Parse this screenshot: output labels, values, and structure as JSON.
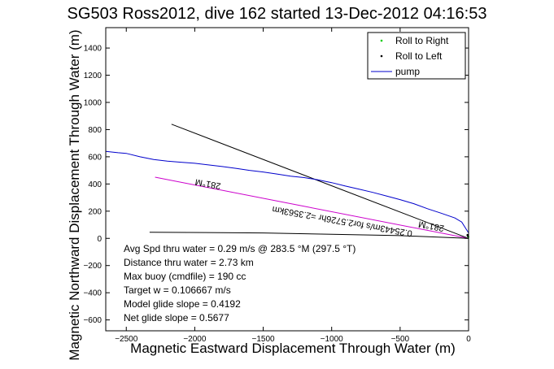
{
  "chart_data": {
    "type": "line",
    "title": "SG503 Ross2012, dive 162 started 13-Dec-2012 04:16:53",
    "xlabel": "Magnetic Eastward Displacement Through Water (m)",
    "ylabel": "Magnetic Northward Displacement Through Water (m)",
    "xlim": [
      -2650,
      0
    ],
    "ylim": [
      -680,
      1550
    ],
    "xticks": [
      -2500,
      -2000,
      -1500,
      -1000,
      -500,
      0
    ],
    "yticks": [
      -600,
      -400,
      -200,
      0,
      200,
      400,
      600,
      800,
      1000,
      1200,
      1400
    ],
    "xtick_labels": [
      "−2500",
      "−2000",
      "−1500",
      "−1000",
      "−500",
      "0"
    ],
    "ytick_labels": [
      "−600",
      "−400",
      "−200",
      "0",
      "200",
      "400",
      "600",
      "800",
      "1000",
      "1200",
      "1400"
    ],
    "grid": false,
    "legend_position": "top-right",
    "series": [
      {
        "name": "Roll to Right",
        "color": "#00cc00",
        "style": "dots",
        "x": [
          -5,
          -3,
          -2
        ],
        "y": [
          20,
          15,
          10
        ]
      },
      {
        "name": "Roll to Left",
        "color": "#000000",
        "style": "dots",
        "x": [
          -8,
          -6
        ],
        "y": [
          25,
          18
        ]
      },
      {
        "name": "pump",
        "color": "#0000cc",
        "style": "line",
        "x": [
          -2650,
          -2560,
          -2500,
          -2400,
          -2300,
          -2200,
          -2100,
          -2000,
          -1900,
          -1800,
          -1700,
          -1600,
          -1500,
          -1400,
          -1300,
          -1200,
          -1100,
          -1000,
          -900,
          -800,
          -700,
          -600,
          -500,
          -400,
          -300,
          -200,
          -100,
          -50,
          0
        ],
        "y": [
          640,
          630,
          625,
          600,
          580,
          568,
          560,
          552,
          540,
          528,
          515,
          500,
          488,
          473,
          458,
          447,
          430,
          410,
          385,
          362,
          338,
          312,
          285,
          255,
          218,
          185,
          150,
          120,
          40
        ]
      }
    ],
    "extra_lines": [
      {
        "color": "#000000",
        "x": [
          -2170,
          0
        ],
        "y": [
          840,
          0
        ]
      },
      {
        "color": "#cc00cc",
        "x": [
          -2290,
          0
        ],
        "y": [
          450,
          0
        ]
      },
      {
        "color": "#000000",
        "x": [
          -2330,
          -1500,
          -1000,
          -500,
          0
        ],
        "y": [
          45,
          40,
          30,
          20,
          0
        ]
      }
    ],
    "annotations": [
      {
        "text": "281°M",
        "x": -1900,
        "y": 420,
        "rotation": 190
      },
      {
        "text": "0.25443m/s for2.5726hr =2.3563km",
        "x": -920,
        "y": 145,
        "rotation": 190
      },
      {
        "text": "281°M",
        "x": -270,
        "y": 110,
        "rotation": 190
      }
    ],
    "info_text": [
      "Avg Spd thru water =  0.29 m/s @ 283.5    °M (297.5 °T)",
      "Distance thru water =  2.73 km",
      "Max buoy (cmdfile) = 190 cc",
      "Target w = 0.106667 m/s",
      "Model glide slope = 0.4192",
      "Net glide slope = 0.5677"
    ]
  }
}
